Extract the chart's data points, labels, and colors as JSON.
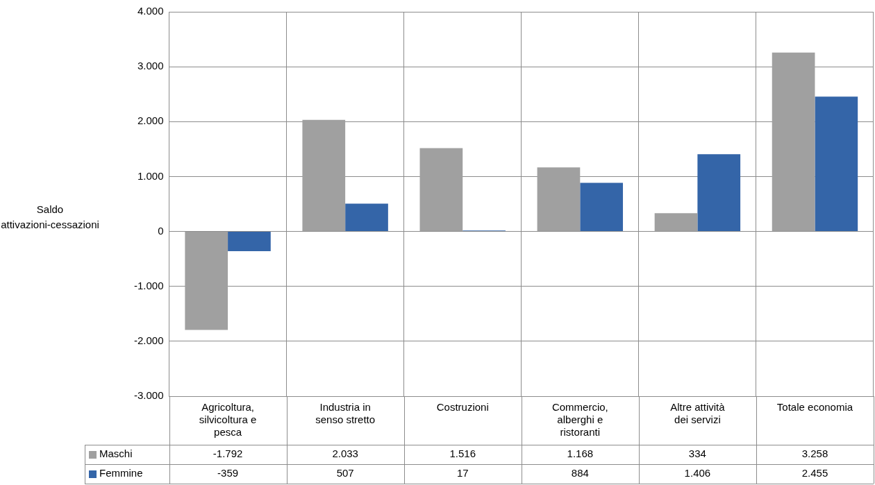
{
  "chart_data": {
    "type": "bar",
    "ylabel": "Saldo attivazioni-cessazioni",
    "categories": [
      "Agricoltura, silvicoltura e pesca",
      "Industria in senso stretto",
      "Costruzioni",
      "Commercio, alberghi e ristoranti",
      "Altre attività dei servizi",
      "Totale economia"
    ],
    "series": [
      {
        "name": "Maschi",
        "color": "#a0a0a0",
        "values": [
          -1792,
          2033,
          1516,
          1168,
          334,
          3258
        ],
        "value_labels": [
          "-1.792",
          "2.033",
          "1.516",
          "1.168",
          "334",
          "3.258"
        ]
      },
      {
        "name": "Femmine",
        "color": "#3465a8",
        "values": [
          -359,
          507,
          17,
          884,
          1406,
          2455
        ],
        "value_labels": [
          "-359",
          "507",
          "17",
          "884",
          "1.406",
          "2.455"
        ]
      }
    ],
    "ylim": [
      -3000,
      4000
    ],
    "yticks": [
      {
        "value": -3000,
        "label": "-3.000"
      },
      {
        "value": -2000,
        "label": "-2.000"
      },
      {
        "value": -1000,
        "label": "-1.000"
      },
      {
        "value": 0,
        "label": "0"
      },
      {
        "value": 1000,
        "label": "1.000"
      },
      {
        "value": 2000,
        "label": "2.000"
      },
      {
        "value": 3000,
        "label": "3.000"
      },
      {
        "value": 4000,
        "label": "4.000"
      }
    ],
    "grid": true,
    "legend": "bottom"
  }
}
